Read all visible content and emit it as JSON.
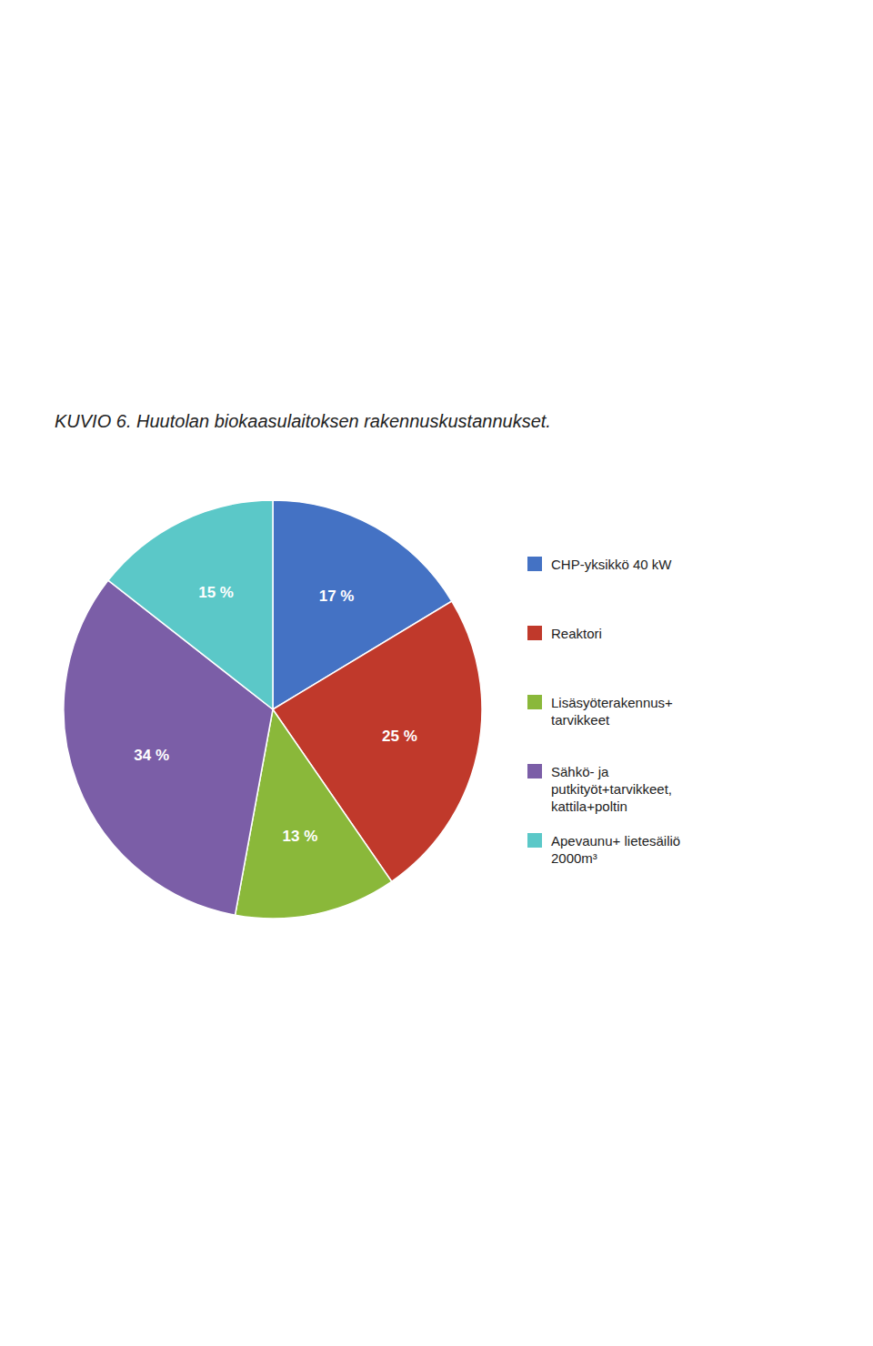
{
  "chart_data": {
    "type": "pie",
    "title": "KUVIO 6. Huutolan biokaasulaitoksen rakennuskustannukset.",
    "categories": [
      "CHP-yksikkö 40 kW",
      "Reaktori",
      "Lisäsyöterakennus+\ntarvikkeet",
      "Sähkö- ja\nputkityöt+tarvikkeet,\nkattila+poltin",
      "Apevaunu+ lietesäiliö\n2000m³"
    ],
    "values": [
      17,
      25,
      13,
      34,
      15
    ],
    "value_labels": [
      "17 %",
      "25 %",
      "13 %",
      "34 %",
      "15 %"
    ],
    "colors": [
      "#4472c4",
      "#c0392b",
      "#8ab83a",
      "#7b5ea7",
      "#5bc8c8"
    ],
    "data_labels": true
  }
}
